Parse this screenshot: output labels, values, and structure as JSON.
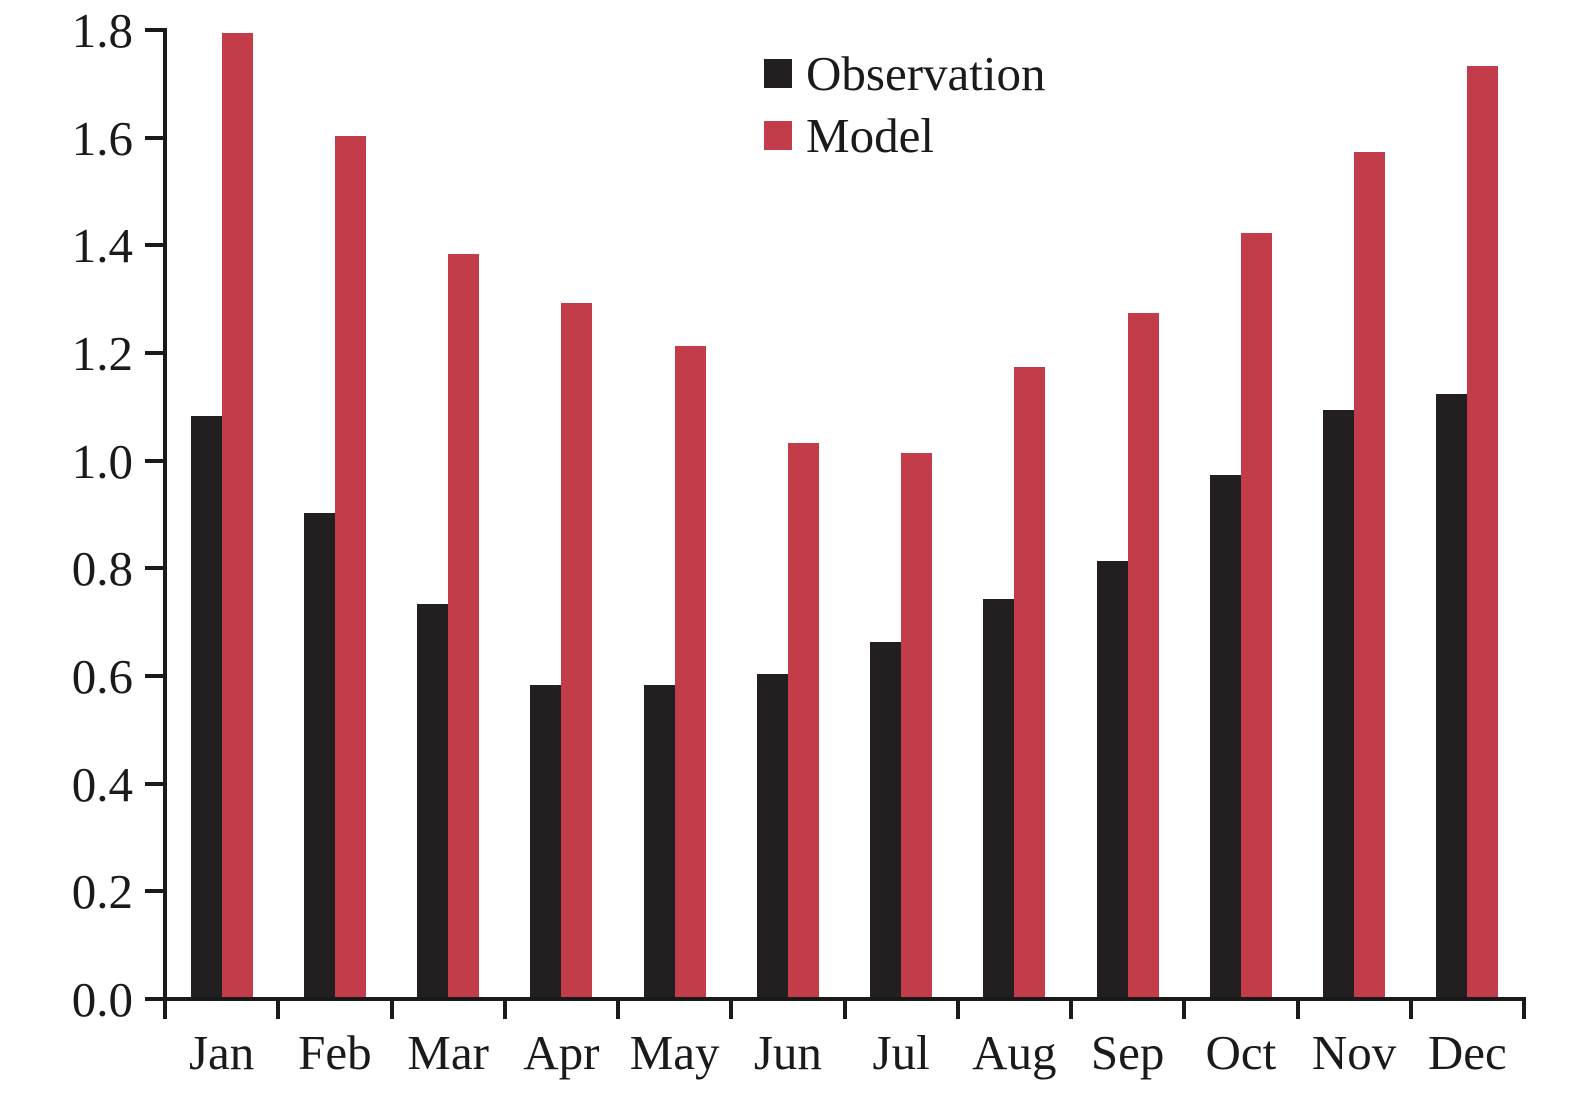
{
  "chart_data": {
    "type": "bar",
    "categories": [
      "Jan",
      "Feb",
      "Mar",
      "Apr",
      "May",
      "Jun",
      "Jul",
      "Aug",
      "Sep",
      "Oct",
      "Nov",
      "Dec"
    ],
    "series": [
      {
        "name": "Observation",
        "color": "#231e20",
        "values": [
          1.08,
          0.9,
          0.73,
          0.58,
          0.58,
          0.6,
          0.66,
          0.74,
          0.81,
          0.97,
          1.09,
          1.12
        ]
      },
      {
        "name": "Model",
        "color": "#c33c4a",
        "values": [
          1.79,
          1.6,
          1.38,
          1.29,
          1.21,
          1.03,
          1.01,
          1.17,
          1.27,
          1.42,
          1.57,
          1.73
        ]
      }
    ],
    "title": "",
    "xlabel": "",
    "ylabel": "",
    "ylim": [
      0.0,
      1.8
    ],
    "ytick_labels": [
      "0.0",
      "0.2",
      "0.4",
      "0.6",
      "0.8",
      "1.0",
      "1.2",
      "1.4",
      "1.6",
      "1.8"
    ],
    "grid": false,
    "legend_position": "top-center",
    "axis_color": "#1a1a1a"
  }
}
